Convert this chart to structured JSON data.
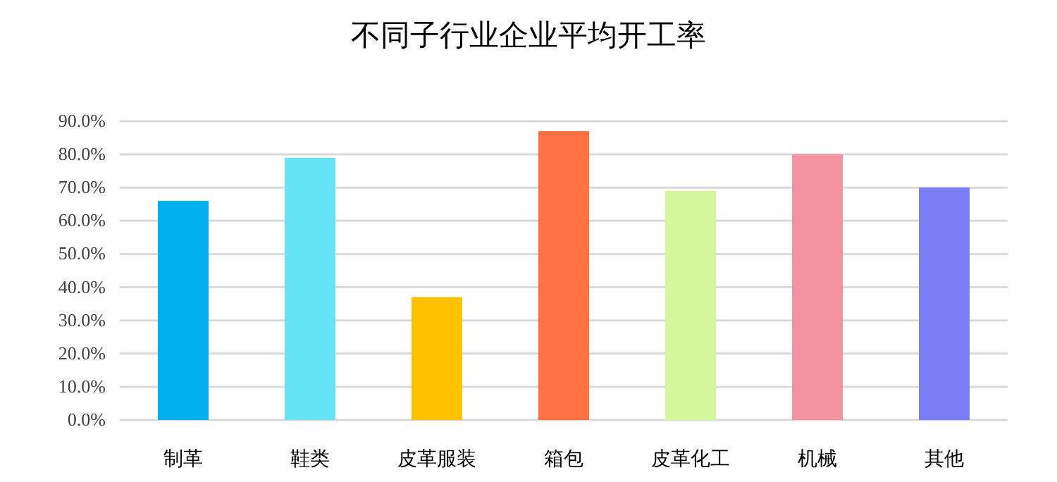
{
  "chart_data": {
    "type": "bar",
    "title": "不同子行业企业平均开工率",
    "categories": [
      "制革",
      "鞋类",
      "皮革服装",
      "箱包",
      "皮革化工",
      "机械",
      "其他"
    ],
    "values": [
      66,
      79,
      37,
      87,
      69,
      80,
      70
    ],
    "colors": [
      "#00b0f0",
      "#66e4f4",
      "#ffc000",
      "#ff7043",
      "#d4f79a",
      "#f292a2",
      "#7a7ef2"
    ],
    "ylim": [
      0,
      90
    ],
    "yticks": [
      {
        "value": 0,
        "label": "0.0%"
      },
      {
        "value": 10,
        "label": "10.0%"
      },
      {
        "value": 20,
        "label": "20.0%"
      },
      {
        "value": 30,
        "label": "30.0%"
      },
      {
        "value": 40,
        "label": "40.0%"
      },
      {
        "value": 50,
        "label": "50.0%"
      },
      {
        "value": 60,
        "label": "60.0%"
      },
      {
        "value": 70,
        "label": "70.0%"
      },
      {
        "value": 80,
        "label": "80.0%"
      },
      {
        "value": 90,
        "label": "90.0%"
      }
    ],
    "grid": "y"
  }
}
